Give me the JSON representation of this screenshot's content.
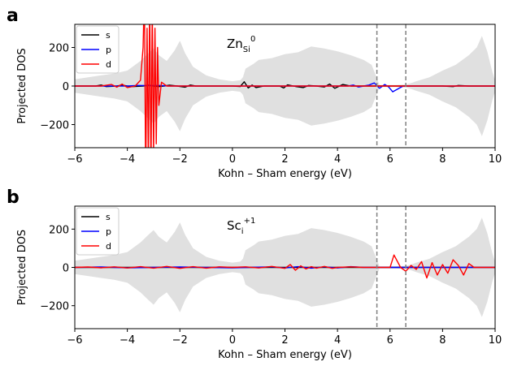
{
  "chart_data": [
    {
      "type": "line",
      "panel_label": "a",
      "annotation": {
        "main": "Zn",
        "sub": "Si",
        "sup": "0"
      },
      "xlabel": "Kohn – Sham energy (eV)",
      "ylabel": "Projected DOS",
      "xlim": [
        -6,
        10
      ],
      "ylim": [
        -320,
        320
      ],
      "xticks": [
        -6,
        -4,
        -2,
        0,
        2,
        4,
        6,
        8,
        10
      ],
      "xtick_labels": [
        "−6",
        "−4",
        "−2",
        "0",
        "2",
        "4",
        "6",
        "8",
        "10"
      ],
      "yticks": [
        -200,
        0,
        200
      ],
      "ytick_labels": [
        "−200",
        "0",
        "200"
      ],
      "vlines": [
        5.5,
        6.6
      ],
      "legend": {
        "position": "top-left",
        "entries": [
          "s",
          "p",
          "d"
        ]
      },
      "background_dos": {
        "color": "#e0e0e0",
        "x": [
          -6,
          -5.5,
          -5,
          -4.5,
          -4,
          -3.8,
          -3.5,
          -3.2,
          -3.0,
          -2.8,
          -2.5,
          -2.2,
          -2.0,
          -1.8,
          -1.5,
          -1.0,
          -0.5,
          0.0,
          0.3,
          0.4,
          0.5,
          0.8,
          1.0,
          1.5,
          2.0,
          2.5,
          3.0,
          3.5,
          4.0,
          4.5,
          5.0,
          5.3,
          5.5,
          5.6,
          6.2,
          6.6,
          6.8,
          7.0,
          7.5,
          8.0,
          8.5,
          9.0,
          9.3,
          9.5,
          9.7,
          9.9,
          10.0
        ],
        "upper": [
          35,
          45,
          55,
          65,
          80,
          100,
          130,
          170,
          195,
          160,
          130,
          185,
          235,
          170,
          100,
          55,
          35,
          25,
          30,
          45,
          90,
          115,
          135,
          145,
          165,
          175,
          205,
          195,
          180,
          160,
          135,
          110,
          40,
          5,
          5,
          8,
          15,
          25,
          45,
          80,
          110,
          160,
          200,
          260,
          180,
          70,
          30
        ],
        "lower": [
          -35,
          -45,
          -55,
          -65,
          -80,
          -100,
          -130,
          -170,
          -195,
          -160,
          -130,
          -185,
          -235,
          -170,
          -100,
          -55,
          -35,
          -25,
          -30,
          -45,
          -90,
          -115,
          -135,
          -145,
          -165,
          -175,
          -205,
          -195,
          -180,
          -160,
          -135,
          -110,
          -40,
          -5,
          -5,
          -8,
          -15,
          -25,
          -45,
          -80,
          -110,
          -160,
          -200,
          -260,
          -180,
          -70,
          -30
        ]
      },
      "series": [
        {
          "name": "s",
          "color": "#000000",
          "x": [
            -6,
            -5.2,
            -5.0,
            -4.8,
            -4.4,
            -4.2,
            -4.0,
            -3.8,
            -3.4,
            -3.2,
            -3.0,
            -2.8,
            -2.6,
            -2.4,
            -2.1,
            -1.8,
            -1.6,
            -1.4,
            -1.0,
            -0.5,
            0.0,
            0.3,
            0.45,
            0.6,
            0.75,
            0.9,
            1.2,
            1.5,
            1.8,
            1.95,
            2.1,
            2.4,
            2.7,
            2.9,
            3.2,
            3.5,
            3.7,
            3.9,
            4.2,
            4.5,
            5.0,
            5.5,
            6.0,
            7.0,
            8.0,
            8.4,
            8.6,
            9.0,
            10
          ],
          "y": [
            0,
            0,
            5,
            -3,
            0,
            4,
            0,
            -3,
            0,
            4,
            0,
            -3,
            0,
            4,
            0,
            -6,
            5,
            0,
            0,
            0,
            0,
            -2,
            22,
            -10,
            5,
            -8,
            0,
            0,
            0,
            -10,
            6,
            -2,
            -8,
            3,
            0,
            -5,
            10,
            -12,
            8,
            0,
            0,
            0,
            0,
            0,
            0,
            -3,
            3,
            0,
            0
          ]
        },
        {
          "name": "p",
          "color": "#0000ff",
          "x": [
            -6,
            -4.0,
            -3.6,
            -3.2,
            -2.8,
            -2.4,
            -1.0,
            0.0,
            1.0,
            2.5,
            3.5,
            4.4,
            4.6,
            4.8,
            5.0,
            5.2,
            5.4,
            5.6,
            5.8,
            5.95,
            6.1,
            6.5,
            7.0,
            8.0,
            10
          ],
          "y": [
            0,
            0,
            3,
            2,
            3,
            0,
            0,
            0,
            0,
            0,
            0,
            0,
            5,
            -5,
            0,
            5,
            16,
            -12,
            8,
            -5,
            -30,
            0,
            0,
            0,
            0
          ]
        },
        {
          "name": "d",
          "color": "#ff0000",
          "x": [
            -6,
            -5.0,
            -4.6,
            -4.4,
            -4.2,
            -4.0,
            -3.7,
            -3.5,
            -3.4,
            -3.35,
            -3.3,
            -3.25,
            -3.2,
            -3.15,
            -3.1,
            -3.05,
            -3.0,
            -2.95,
            -2.9,
            -2.85,
            -2.8,
            -2.7,
            -2.5,
            -2.0,
            -1.5,
            -1.0,
            0.0,
            1.0,
            2.0,
            3.0,
            4.0,
            5.0,
            6.0,
            7.0,
            8.0,
            9.0,
            10
          ],
          "y": [
            0,
            0,
            8,
            -6,
            10,
            -8,
            0,
            30,
            200,
            500,
            -500,
            300,
            -400,
            450,
            -450,
            400,
            -350,
            300,
            -300,
            200,
            -100,
            20,
            0,
            0,
            0,
            0,
            0,
            0,
            0,
            0,
            0,
            0,
            0,
            0,
            0,
            0,
            0
          ]
        }
      ]
    },
    {
      "type": "line",
      "panel_label": "b",
      "annotation": {
        "main": "Sc",
        "sub": "i",
        "sup": "+1"
      },
      "xlabel": "Kohn – Sham energy (eV)",
      "ylabel": "Projected DOS",
      "xlim": [
        -6,
        10
      ],
      "ylim": [
        -320,
        320
      ],
      "xticks": [
        -6,
        -4,
        -2,
        0,
        2,
        4,
        6,
        8,
        10
      ],
      "xtick_labels": [
        "−6",
        "−4",
        "−2",
        "0",
        "2",
        "4",
        "6",
        "8",
        "10"
      ],
      "yticks": [
        -200,
        0,
        200
      ],
      "ytick_labels": [
        "−200",
        "0",
        "200"
      ],
      "vlines": [
        5.5,
        6.6
      ],
      "legend": {
        "position": "top-left",
        "entries": [
          "s",
          "p",
          "d"
        ]
      },
      "background_dos": {
        "color": "#e0e0e0",
        "x": [
          -6,
          -5.5,
          -5,
          -4.5,
          -4,
          -3.8,
          -3.5,
          -3.2,
          -3.0,
          -2.8,
          -2.5,
          -2.2,
          -2.0,
          -1.8,
          -1.5,
          -1.0,
          -0.5,
          0.0,
          0.3,
          0.4,
          0.5,
          0.8,
          1.0,
          1.5,
          2.0,
          2.5,
          3.0,
          3.5,
          4.0,
          4.5,
          5.0,
          5.3,
          5.5,
          5.6,
          6.2,
          6.6,
          6.8,
          7.0,
          7.5,
          8.0,
          8.5,
          9.0,
          9.3,
          9.5,
          9.7,
          9.9,
          10.0
        ],
        "upper": [
          35,
          45,
          55,
          65,
          80,
          100,
          130,
          170,
          195,
          160,
          130,
          185,
          235,
          170,
          100,
          55,
          35,
          25,
          30,
          45,
          90,
          115,
          135,
          145,
          165,
          175,
          205,
          195,
          180,
          160,
          135,
          110,
          40,
          5,
          5,
          8,
          15,
          25,
          45,
          80,
          110,
          160,
          200,
          260,
          180,
          70,
          30
        ],
        "lower": [
          -35,
          -45,
          -55,
          -65,
          -80,
          -100,
          -130,
          -170,
          -195,
          -160,
          -130,
          -185,
          -235,
          -170,
          -100,
          -55,
          -35,
          -25,
          -30,
          -45,
          -90,
          -115,
          -135,
          -145,
          -165,
          -175,
          -205,
          -195,
          -180,
          -160,
          -135,
          -110,
          -40,
          -5,
          -5,
          -8,
          -15,
          -25,
          -45,
          -80,
          -110,
          -160,
          -200,
          -260,
          -180,
          -70,
          -30
        ]
      },
      "series": [
        {
          "name": "s",
          "color": "#000000",
          "x": [
            -6,
            -2.0,
            -1.0,
            0.0,
            1.0,
            2.0,
            3.0,
            4.0,
            5.0,
            6.0,
            7.0,
            8.0,
            9.0,
            10
          ],
          "y": [
            0,
            0,
            0,
            0,
            0,
            0,
            0,
            0,
            0,
            0,
            0,
            0,
            0,
            0
          ]
        },
        {
          "name": "p",
          "color": "#0000ff",
          "x": [
            -6,
            -5.0,
            -4.0,
            -2.0,
            0.0,
            1.5,
            2.0,
            2.5,
            3.0,
            3.5,
            4.0,
            4.5,
            5.0,
            6.0,
            7.0,
            8.0,
            9.0,
            10
          ],
          "y": [
            0,
            2,
            -2,
            2,
            -2,
            3,
            -3,
            4,
            -4,
            3,
            -3,
            4,
            0,
            0,
            0,
            0,
            0,
            0
          ]
        },
        {
          "name": "d",
          "color": "#ff0000",
          "x": [
            -6,
            -5.5,
            -5.0,
            -4.5,
            -4.0,
            -3.5,
            -3.0,
            -2.5,
            -2.0,
            -1.5,
            -1.0,
            -0.5,
            0.0,
            0.5,
            1.0,
            1.5,
            2.0,
            2.2,
            2.4,
            2.6,
            2.8,
            3.0,
            3.2,
            3.5,
            3.8,
            4.0,
            4.5,
            5.0,
            5.5,
            6.0,
            6.15,
            6.4,
            6.6,
            6.8,
            7.0,
            7.2,
            7.4,
            7.6,
            7.8,
            8.0,
            8.2,
            8.4,
            8.6,
            8.8,
            9.0,
            9.2,
            10
          ],
          "y": [
            0,
            2,
            -2,
            3,
            -3,
            4,
            -4,
            5,
            -5,
            4,
            -4,
            3,
            0,
            3,
            -3,
            5,
            -5,
            15,
            -15,
            8,
            -8,
            4,
            -4,
            5,
            -5,
            0,
            3,
            0,
            0,
            0,
            65,
            0,
            -20,
            10,
            -10,
            30,
            -55,
            25,
            -40,
            15,
            -30,
            40,
            10,
            -40,
            20,
            0,
            0
          ]
        }
      ]
    }
  ]
}
